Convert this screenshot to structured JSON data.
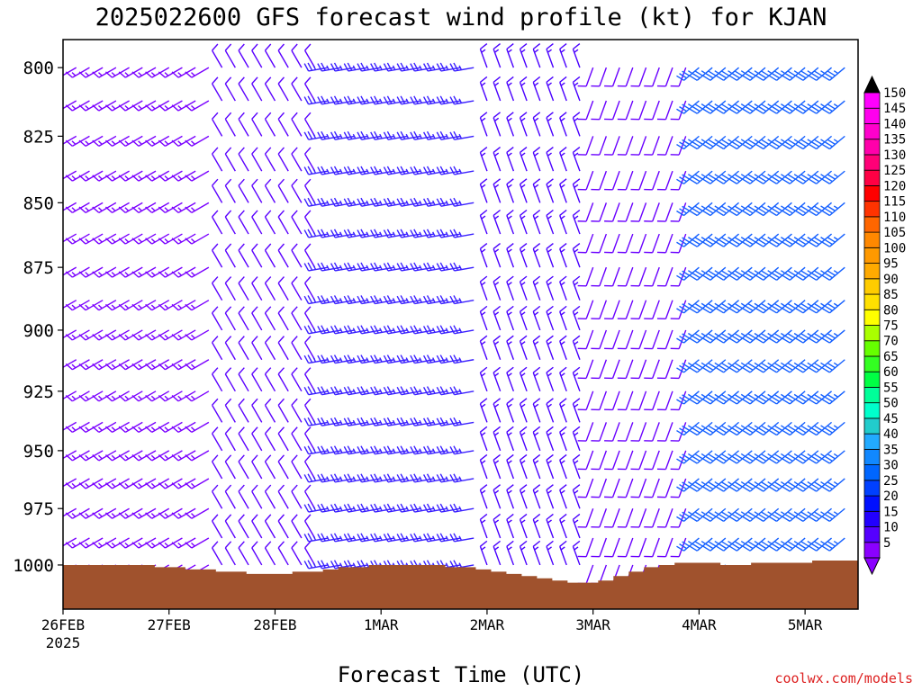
{
  "title": "2025022600 GFS forecast wind profile (kt) for KJAN",
  "xlabel": "Forecast Time (UTC)",
  "credit": "coolwx.com/models",
  "colors": {
    "frame": "#000000",
    "terrain": "#a0522d",
    "credit": "#dd2222"
  },
  "chart_data": {
    "type": "wind-barb time-height",
    "title": "2025022600 GFS forecast wind profile (kt) for KJAN",
    "xlabel": "Forecast Time (UTC)",
    "ylabel": "",
    "x_range_days": [
      0,
      7.5
    ],
    "y_range_hpa": [
      790,
      1020
    ],
    "y_ticks": [
      "800",
      "825",
      "850",
      "875",
      "900",
      "925",
      "950",
      "975",
      "1000"
    ],
    "x_ticks": [
      {
        "label": "26FEB",
        "sub": "2025"
      },
      {
        "label": "27FEB",
        "sub": ""
      },
      {
        "label": "28FEB",
        "sub": ""
      },
      {
        "label": "1MAR",
        "sub": ""
      },
      {
        "label": "2MAR",
        "sub": ""
      },
      {
        "label": "3MAR",
        "sub": ""
      },
      {
        "label": "4MAR",
        "sub": ""
      },
      {
        "label": "5MAR",
        "sub": ""
      }
    ],
    "levels_hpa": [
      800,
      812,
      825,
      838,
      850,
      862,
      875,
      888,
      900,
      912,
      925,
      938,
      950,
      962,
      975,
      988,
      1000
    ],
    "time_step_hours": 3,
    "regimes": [
      {
        "start_h": 0,
        "end_h": 36,
        "dir_deg": 240,
        "speed_kt": 15,
        "color": "#7a00ff"
      },
      {
        "start_h": 36,
        "end_h": 60,
        "dir_deg": 330,
        "speed_kt": 10,
        "color": "#5a00ff"
      },
      {
        "start_h": 60,
        "end_h": 96,
        "dir_deg": 260,
        "speed_kt": 25,
        "color": "#3a20ff"
      },
      {
        "start_h": 96,
        "end_h": 120,
        "dir_deg": 340,
        "speed_kt": 15,
        "color": "#4a00ff"
      },
      {
        "start_h": 120,
        "end_h": 144,
        "dir_deg": 200,
        "speed_kt": 10,
        "color": "#6a00ff"
      },
      {
        "start_h": 144,
        "end_h": 180,
        "dir_deg": 230,
        "speed_kt": 35,
        "color": "#1560ff"
      }
    ],
    "surface_pressure_hpa": [
      1000,
      1000,
      1000,
      1000,
      1000,
      1000,
      1001,
      1001,
      1002,
      1002,
      1003,
      1003,
      1004,
      1004,
      1004,
      1003,
      1003,
      1002,
      1001,
      1001,
      1000,
      1000,
      1000,
      1000,
      1000,
      1001,
      1001,
      1002,
      1003,
      1004,
      1005,
      1006,
      1007,
      1008,
      1008,
      1007,
      1005,
      1003,
      1001,
      1000,
      999,
      999,
      999,
      1000,
      1000,
      999,
      999,
      999,
      999,
      998,
      998,
      998,
      998
    ],
    "legend": {
      "values": [
        "5",
        "10",
        "15",
        "20",
        "25",
        "30",
        "35",
        "40",
        "45",
        "50",
        "55",
        "60",
        "65",
        "70",
        "75",
        "80",
        "85",
        "90",
        "95",
        "100",
        "105",
        "110",
        "115",
        "120",
        "125",
        "130",
        "135",
        "140",
        "145",
        "150"
      ],
      "colors": [
        "#8a00ff",
        "#5500ff",
        "#2200ff",
        "#0010ff",
        "#0040ff",
        "#0066ff",
        "#1188ff",
        "#22aaff",
        "#22cccc",
        "#00ffcc",
        "#00ff99",
        "#00ff44",
        "#33ff22",
        "#66ff00",
        "#aaff00",
        "#ffff00",
        "#ffe000",
        "#ffcc00",
        "#ffaa00",
        "#ff9900",
        "#ff8800",
        "#ff6600",
        "#ff3300",
        "#ff0000",
        "#ff0044",
        "#ff0077",
        "#ff00aa",
        "#ff00cc",
        "#ff00ee",
        "#ff00ff"
      ]
    }
  }
}
